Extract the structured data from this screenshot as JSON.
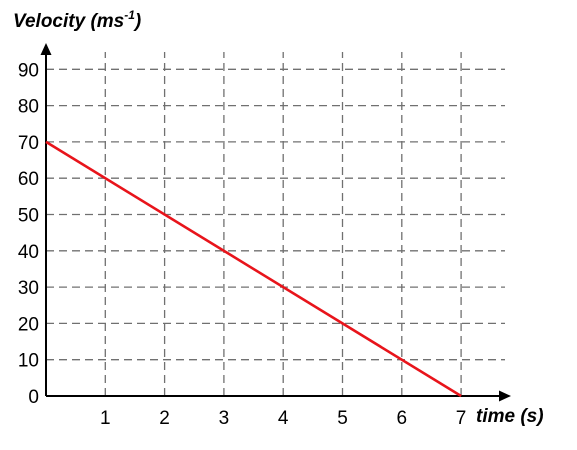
{
  "chart_data": {
    "type": "line",
    "ylabel": {
      "text": "Velocity (ms",
      "superscript": "-1",
      "suffix": ")"
    },
    "xlabel": "time (s)",
    "xlim": [
      0,
      7.7
    ],
    "ylim": [
      0,
      96
    ],
    "x_ticks": [
      1,
      2,
      3,
      4,
      5,
      6,
      7
    ],
    "y_ticks": [
      0,
      10,
      20,
      30,
      40,
      50,
      60,
      70,
      80,
      90
    ],
    "grid": true,
    "series": [
      {
        "color": "#e8141b",
        "x": [
          0,
          7
        ],
        "y": [
          70,
          0
        ]
      }
    ]
  }
}
